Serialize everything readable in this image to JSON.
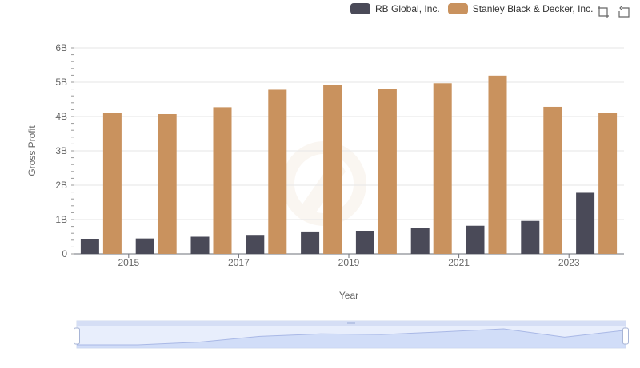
{
  "legend": {
    "items": [
      {
        "label": "RB Global, Inc.",
        "color": "#4a4a58"
      },
      {
        "label": "Stanley Black & Decker, Inc.",
        "color": "#c9925e"
      }
    ]
  },
  "toolbox": {
    "icons": [
      "zoom-icon",
      "restore-icon"
    ]
  },
  "chart_data": {
    "type": "bar",
    "title": "",
    "xlabel": "Year",
    "ylabel": "Gross Profit",
    "categories": [
      "2014",
      "2015",
      "2016",
      "2017",
      "2018",
      "2019",
      "2020",
      "2021",
      "2022",
      "2023"
    ],
    "x_tick_labels": [
      "2015",
      "2017",
      "2019",
      "2021",
      "2023"
    ],
    "y_tick_labels": [
      "0",
      "1B",
      "2B",
      "3B",
      "4B",
      "5B",
      "6B"
    ],
    "ylim": [
      0,
      6000000000
    ],
    "grid": true,
    "legend_position": "top-right",
    "series": [
      {
        "name": "RB Global, Inc.",
        "color": "#4a4a58",
        "values": [
          420000000,
          450000000,
          500000000,
          530000000,
          630000000,
          670000000,
          760000000,
          820000000,
          960000000,
          1780000000
        ]
      },
      {
        "name": "Stanley Black & Decker, Inc.",
        "color": "#c9925e",
        "values": [
          4100000000,
          4070000000,
          4270000000,
          4780000000,
          4910000000,
          4810000000,
          4970000000,
          5190000000,
          4280000000,
          4100000000
        ]
      }
    ],
    "data_zoom": {
      "range": [
        0,
        100
      ]
    }
  }
}
